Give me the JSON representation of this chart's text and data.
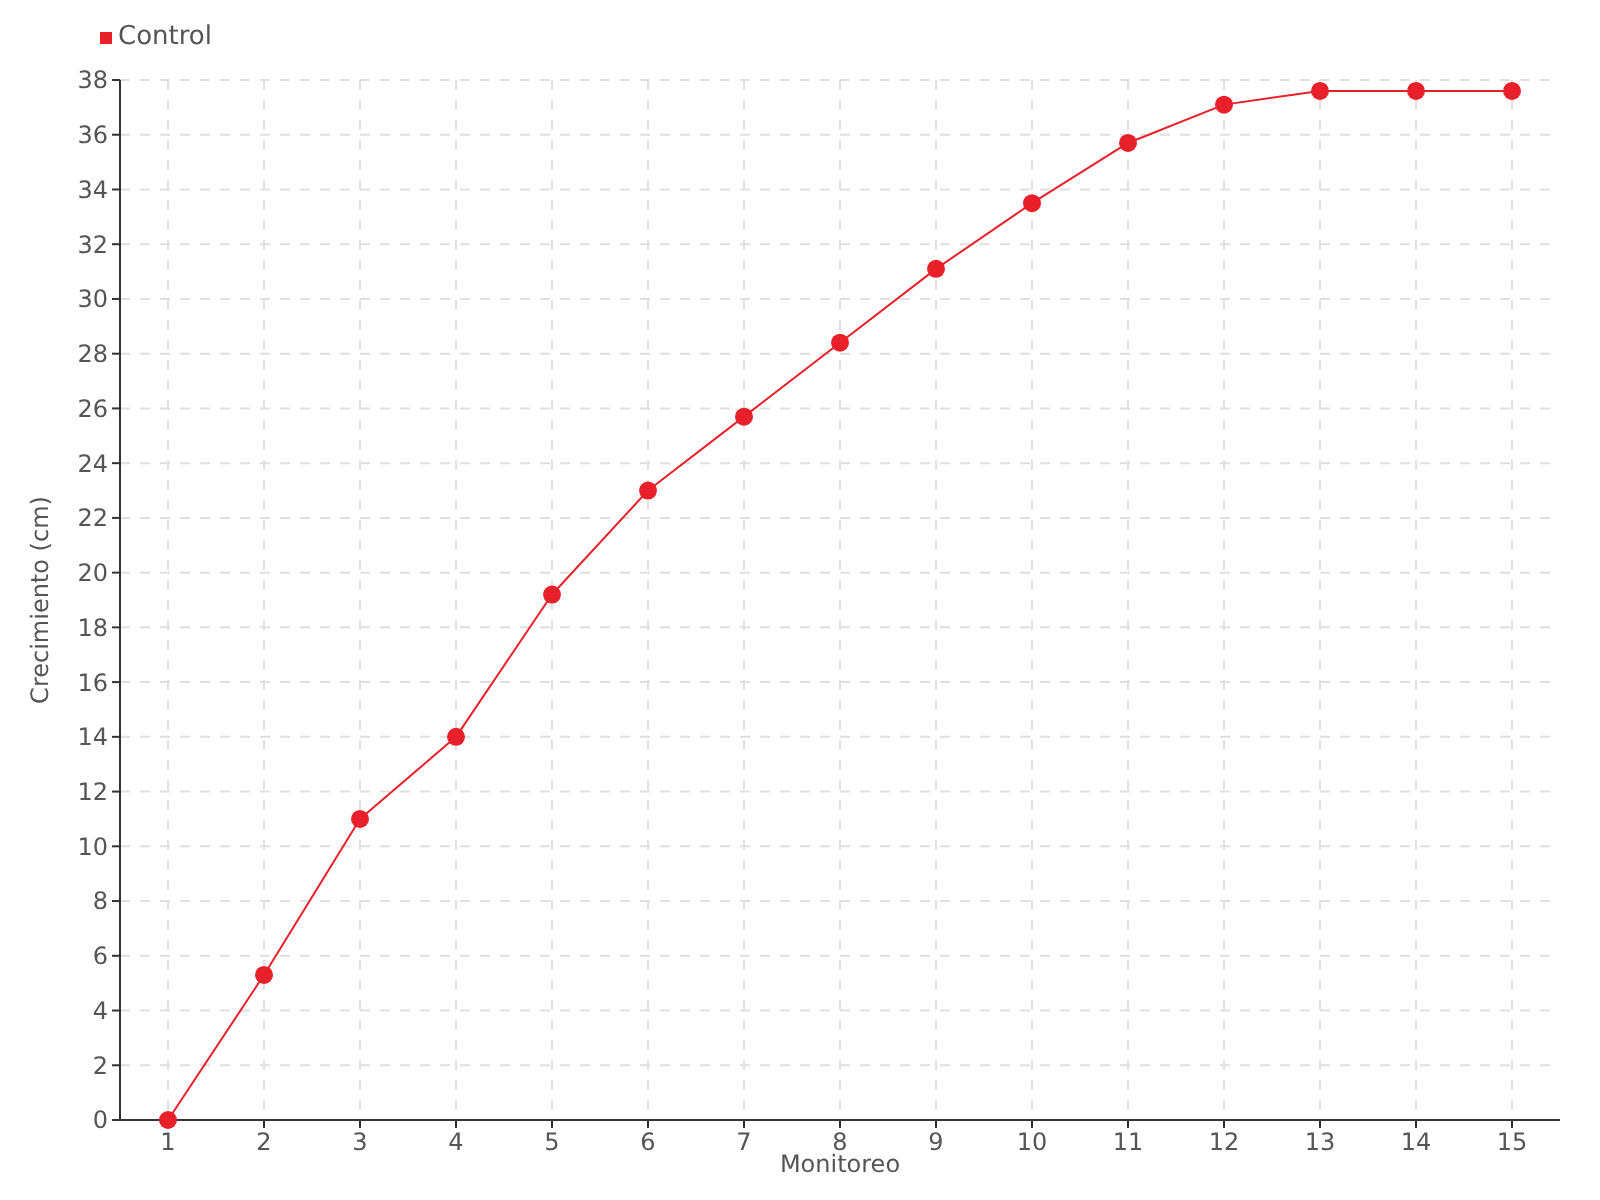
{
  "chart_data": {
    "type": "line",
    "xlabel": "Monitoreo",
    "ylabel": "Crecimiento (cm)",
    "categories": [
      "1",
      "2",
      "3",
      "4",
      "5",
      "6",
      "7",
      "8",
      "9",
      "10",
      "11",
      "12",
      "13",
      "14",
      "15"
    ],
    "series": [
      {
        "name": "Control",
        "color": "#e8202a",
        "values": [
          0,
          5.3,
          11.0,
          14.0,
          19.2,
          23.0,
          25.7,
          28.4,
          31.1,
          33.5,
          35.7,
          37.1,
          37.6,
          37.6,
          37.6
        ]
      }
    ],
    "ylim": [
      0,
      38
    ],
    "yticks": [
      0,
      2,
      4,
      6,
      8,
      10,
      12,
      14,
      16,
      18,
      20,
      22,
      24,
      26,
      28,
      30,
      32,
      34,
      36,
      38
    ],
    "grid": true,
    "legend": "top left",
    "marker": "circle",
    "line_style": "solid"
  }
}
